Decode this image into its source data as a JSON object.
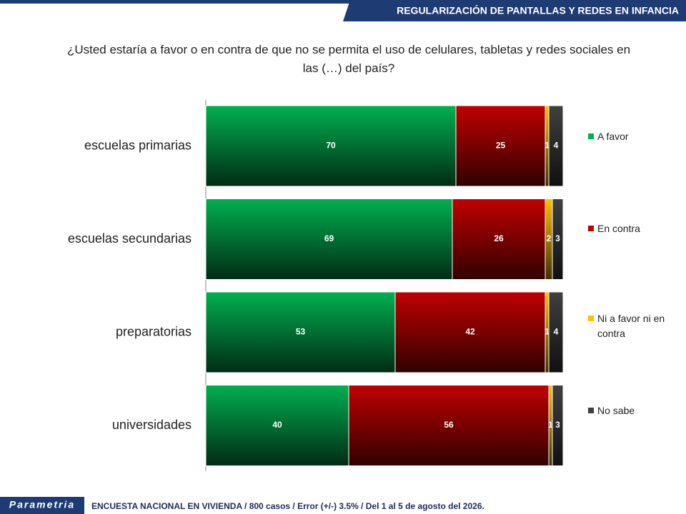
{
  "header": {
    "title": "REGULARIZACIÓN DE PANTALLAS Y REDES EN INFANCIA"
  },
  "chart_data": {
    "type": "stacked-bar-horizontal",
    "title": "¿Usted estaría a favor o en contra de que no se permita el uso de celulares, tabletas y redes sociales en las (…) del país?",
    "categories": [
      "escuelas primarias",
      "escuelas secundarias",
      "preparatorias",
      "universidades"
    ],
    "xlim": [
      0,
      100
    ],
    "legend": "right",
    "series": [
      {
        "name": "A favor",
        "color": "#00b050",
        "values": [
          70,
          69,
          53,
          40
        ]
      },
      {
        "name": "En contra",
        "color": "#c00000",
        "values": [
          25,
          26,
          42,
          56
        ]
      },
      {
        "name": "Ni a favor ni en contra",
        "color": "#ffc000",
        "values": [
          1,
          2,
          1,
          1
        ]
      },
      {
        "name": "No sabe",
        "color": "#404040",
        "values": [
          4,
          3,
          4,
          3
        ]
      }
    ]
  },
  "footer": {
    "logo": "Parametria",
    "note": "ENCUESTA NACIONAL EN VIVIENDA / 800 casos / Error (+/-) 3.5% / Del 1 al 5 de agosto del 2026."
  }
}
